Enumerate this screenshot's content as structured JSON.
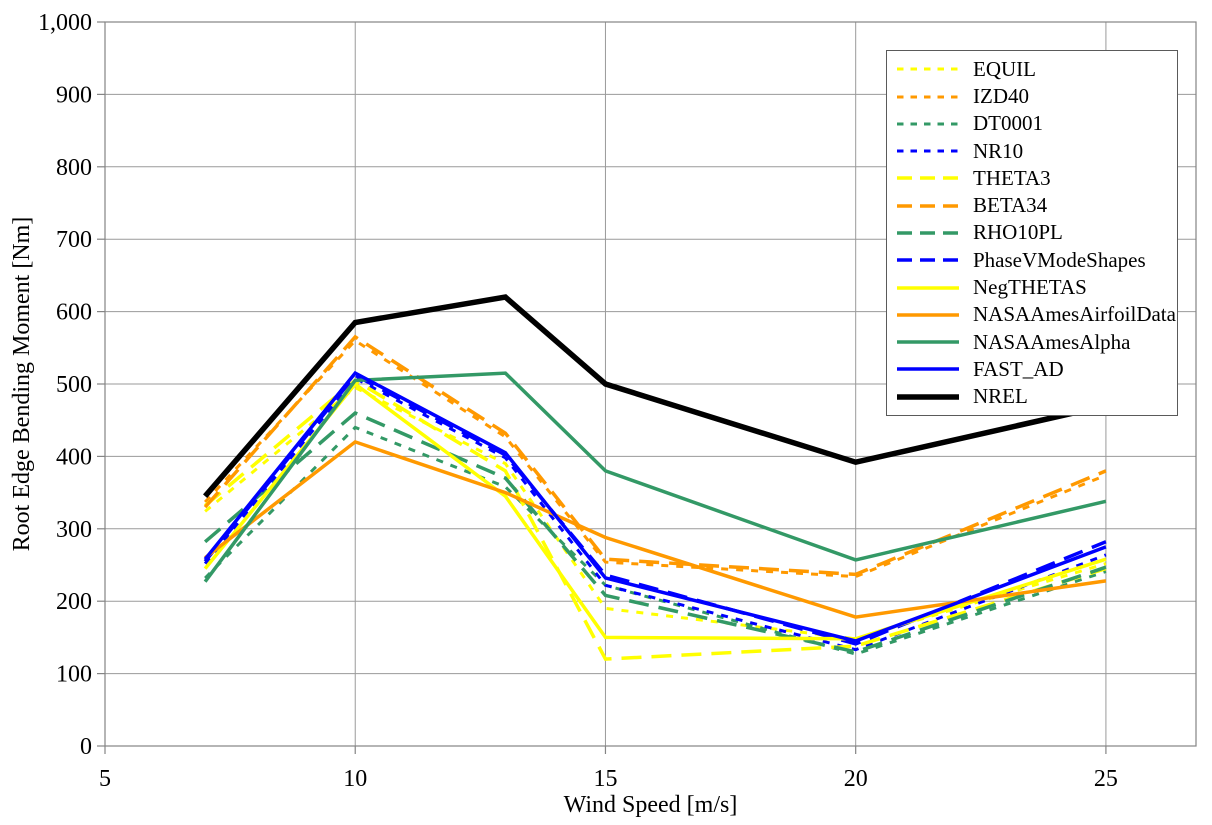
{
  "chart_data": {
    "type": "line",
    "title": "",
    "xlabel": "Wind Speed [m/s]",
    "ylabel": "Root Edge Bending Moment [Nm]",
    "xlim": [
      5,
      26.8
    ],
    "ylim": [
      0,
      1000
    ],
    "grid": true,
    "legend_position": "top-right",
    "x_ticks": [
      "5",
      "10",
      "15",
      "20",
      "25"
    ],
    "x_gridlines": [
      10,
      15,
      20,
      25
    ],
    "y_ticks": [
      "0",
      "100",
      "200",
      "300",
      "400",
      "500",
      "600",
      "700",
      "800",
      "900",
      "1,000"
    ],
    "y_tick_step": 100,
    "x": [
      7,
      10,
      13,
      15,
      20,
      25
    ],
    "series": [
      {
        "name": "EQUIL",
        "color": "#FFFF00",
        "dash": "short",
        "stroke_width": 3,
        "values": [
          324,
          495,
          390,
          190,
          148,
          252
        ]
      },
      {
        "name": "IZD40",
        "color": "#FF9900",
        "dash": "short",
        "stroke_width": 3,
        "values": [
          337,
          560,
          427,
          254,
          234,
          374
        ]
      },
      {
        "name": "DT0001",
        "color": "#339966",
        "dash": "short",
        "stroke_width": 3,
        "values": [
          232,
          440,
          358,
          222,
          127,
          241
        ]
      },
      {
        "name": "NR10",
        "color": "#0000FF",
        "dash": "short",
        "stroke_width": 3,
        "values": [
          252,
          508,
          398,
          222,
          133,
          264
        ]
      },
      {
        "name": "THETA3",
        "color": "#FFFF00",
        "dash": "long",
        "stroke_width": 3.5,
        "values": [
          332,
          505,
          380,
          120,
          138,
          245
        ]
      },
      {
        "name": "BETA34",
        "color": "#FF9900",
        "dash": "long",
        "stroke_width": 3.5,
        "values": [
          330,
          565,
          432,
          258,
          237,
          380
        ]
      },
      {
        "name": "RHO10PL",
        "color": "#339966",
        "dash": "long",
        "stroke_width": 3.5,
        "values": [
          282,
          460,
          370,
          208,
          130,
          247
        ]
      },
      {
        "name": "PhaseVModeShapes",
        "color": "#0000FF",
        "dash": "long",
        "stroke_width": 3.5,
        "values": [
          255,
          512,
          402,
          236,
          141,
          282
        ]
      },
      {
        "name": "NegTHETAS",
        "color": "#FFFF00",
        "dash": "solid",
        "stroke_width": 3.5,
        "values": [
          245,
          500,
          345,
          150,
          148,
          258
        ]
      },
      {
        "name": "NASAAmesAirfoilData",
        "color": "#FF9900",
        "dash": "solid",
        "stroke_width": 3.5,
        "values": [
          260,
          420,
          350,
          288,
          178,
          228
        ]
      },
      {
        "name": "NASAAmesAlpha",
        "color": "#339966",
        "dash": "solid",
        "stroke_width": 3.5,
        "values": [
          227,
          505,
          515,
          380,
          257,
          338
        ]
      },
      {
        "name": "FAST_AD",
        "color": "#0000FF",
        "dash": "solid",
        "stroke_width": 3.5,
        "values": [
          258,
          515,
          405,
          232,
          145,
          275
        ]
      },
      {
        "name": "NREL",
        "color": "#000000",
        "dash": "solid",
        "stroke_width": 5.5,
        "values": [
          345,
          585,
          620,
          500,
          392,
          470
        ]
      }
    ]
  }
}
